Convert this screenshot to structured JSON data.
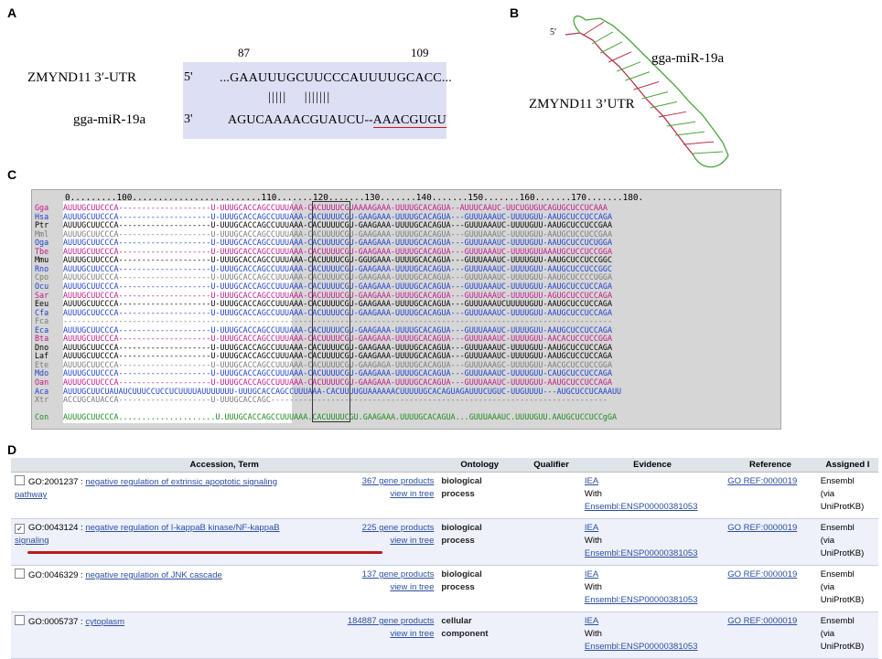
{
  "panels": {
    "a": "A",
    "b": "B",
    "c": "C",
    "d": "D"
  },
  "panelA": {
    "pos_start": "87",
    "pos_end": "109",
    "utr_label": "ZMYND11 3′-UTR",
    "mir_label": "gga-miR-19a",
    "utr_end": "5'",
    "mir_end": "3'",
    "utr_seq": "...GAAUUUGCUUCCCAUUUUGCACC...",
    "pairs": "|||||    |||||||",
    "mir_seq": "AGUCAAAACGUAUCU--",
    "mir_seed": "AAACGUGU"
  },
  "panelB": {
    "five_prime": "5′",
    "mir_label": "gga-miR-19a",
    "utr_label": "ZMYND11 3’UTR",
    "colors": {
      "mirna": "#4aa63c",
      "utr": "#b5334a"
    }
  },
  "panelC": {
    "ruler": "0.........100.........................110.......120.......130.......140.......150.......160.......170.......180.",
    "rows": [
      {
        "sp": "Gga",
        "color": "#c0188a",
        "seq": "AUUUGCUUCCCA--------------------U-UUUGCACCAGCCUUUAAA-CACUUUUCGUAAAAGAAA-UUUUGCACAGUA--AUUUCAAUC-UUCUGUGUCAGUGCUCCUCAAA"
      },
      {
        "sp": "Hsa",
        "color": "#1e3fd0",
        "seq": "AUUUGCUUCCCA--------------------U-UUUGCACCAGCCUUUAAA-CACUUUUCGU-GAAGAAA-UUUUGCACAGUA---GUUUAAAUC-UUUUGUU-AAUGCUCCUCCAGA"
      },
      {
        "sp": "Ptr",
        "color": "#000000",
        "seq": "AUUUGCUUCCCA--------------------U-UUUGCACCAGCCUUUAAA-CACUUUUCGU-GAAGAAA-UUUUGCACAGUA---GUUUAAAUC-UUUUGUU-AAUGCUCCUCCGAA"
      },
      {
        "sp": "Mml",
        "color": "#7a7a7a",
        "seq": "AUUUGCUUCCCA--------------------U-UUUGCACCAGCCUUUAAA-CACUUUUCGU-GAAGAAA-UUUUGCACAGUA---GUUUAAAUC-UUUUGUU-AAUGCUCCUCCGAA"
      },
      {
        "sp": "Oga",
        "color": "#1e3fd0",
        "seq": "AUUUGCUUCCCA--------------------U-UUUGCACCAGCCUUUAAA-CACUUUUCGU-GAAGAAA-UUUUGCACAGUA---GUUUAAAUC-UUUUGUU-AAUGCUCCUCUGGA"
      },
      {
        "sp": "Tbe",
        "color": "#c0188a",
        "seq": "AUUUGCUUCCCA--------------------U-UUUGCACCAGCCUUUAAA-CACUUUUCGU-GAAGAAA-UUUUGCACAGUA---GUUUAAAUC-UUUUGUUAAAUGCUCCUCCGGA"
      },
      {
        "sp": "Mmu",
        "color": "#000000",
        "seq": "AUUUGCUUCCCA--------------------U-UUUGCACCAGCCUUUAAA-CACUUUUCGU-GGUGAAA-UUUUGCACAGUA---GUUUAAAUC-UUUUGUU-AAUGCUCCUCCGGC"
      },
      {
        "sp": "Rno",
        "color": "#1e3fd0",
        "seq": "AUUUGCUUCCCA--------------------U-UUUGCACCAGCCUUUAAA-CACUUUUCGU-GAAGAAA-UUUUGCACAGUA---GUUUAAAUC-UUUUGUU-AAUGCUCCUCCGGC"
      },
      {
        "sp": "Cpo",
        "color": "#7a7a7a",
        "seq": "AUUUGCUUCCCA--------------------U-UUUGCACCAGCCUUUAAA-CACUUUUCGU-GAAGAAA-UUUUGCACAGUA---GUUUAAAUC-UUUUGUU-AAUGCUCCCCUGGA"
      },
      {
        "sp": "Ocu",
        "color": "#1e3fd0",
        "seq": "AUUUGCUUCCCA--------------------U-UUUGCACCAGCCUUUAAA-CACUUUUCGU-GAAGAAA-UUUUGCACAGUA---GUUUAAAUC-UUUUGUU-AAUGCUCCUCCAGA"
      },
      {
        "sp": "Sar",
        "color": "#c0188a",
        "seq": "AUUUGCUUCCCA--------------------U-UUUGCACCAGCCUUUAAA-CACUUUUCGU-GAAGAAA-UUUUGCACAGUA---GUUUAAAUC-UUUUGUU-AGUGCUCCUCCAGA"
      },
      {
        "sp": "Eeu",
        "color": "#000000",
        "seq": "AUUUGCUUCCCA--------------------U-UUUGCACCAGCCUUUAAA-CACUUUUCGU-GAAGAAA-UUUUGCACAGUA---GUUUAAAUCUUUUUGUU-AAUGCUCCUCCAGA"
      },
      {
        "sp": "Cfa",
        "color": "#1e3fd0",
        "seq": "AUUUGCUUCCCA--------------------U-UUUGCACCAGCCUUUAAA-CACUUUUCGU-GAAGAAA-UUUUGCACAGUA---GUUUAAAUC-UUUUGUU-AAUGCUCCUCCAGA"
      },
      {
        "sp": "Fca",
        "color": "#7a7a7a",
        "seq": "-----------------------------------------------------------------------------------------------------------------------"
      },
      {
        "sp": "Eca",
        "color": "#1e3fd0",
        "seq": "AUUUGCUUCCCA--------------------U-UUUGCACCAGCCUUUAAA-CACUUUUCGU-GAAGAAA-UUUUGCACAGUA---GUUUAAAUC-UUUUGUU-AAUGCUCCUCCAGA"
      },
      {
        "sp": "Bta",
        "color": "#c0188a",
        "seq": "AUUUGCUUCCCA--------------------U-UUUGCACCAGCCUUUAAA-CACUUUUCGU-GAAGAAA-UUUUGCACAGUA---GUUUAAAUC-UUUUGUU-AACACUCCUCCGGA"
      },
      {
        "sp": "Dno",
        "color": "#000000",
        "seq": "AUUUGCUUCCCA--------------------U-UUUGCACCAGCCUUUAAA-CACUUUUCGU-GAAGAAA-UUUUGCACAGUA---GUUUAAAUC-UUUUGUU-AAUGCUCCUCCAGA"
      },
      {
        "sp": "Laf",
        "color": "#000000",
        "seq": "AUUUGCUUCCCA--------------------U-UUUGCACCAGCCUUUAAA-CACUUUUCGU-GAAGAAA-UUUUGCACAGUA---GUUUAAAUC-UUUUGUU-AAUGCUCCUCCAGA"
      },
      {
        "sp": "Ete",
        "color": "#7a7a7a",
        "seq": "AUUUGCUUCCCA--------------------U-UUUGCACCAGCCUUUAAA-CACUUUUCGU-GAAGAGA-UUUUGCACAGUA---GUUUAAAGC-UUUUGUU-AACGCUCCUCCGGA"
      },
      {
        "sp": "Mdo",
        "color": "#1e3fd0",
        "seq": "AUUUGCUUCCCA--------------------U-UUUGCACCAGCCUUUAAA-CACUUUUCGU-GAAGAAA-UUUUGCACAGUA---GUUUAAAUC-UUUUGUU-CAUGCUCCUCCAGA"
      },
      {
        "sp": "Oan",
        "color": "#c0188a",
        "seq": "AUUUGCUUCCCA--------------------U-UUUGCACCAGCCUUUAAA-CACUUUUCGU-GAAGAAA-UUUUGCACAGUA---GUUUAAAUC-UUUUGUU-AAUGCUCCUCCAGA"
      },
      {
        "sp": "Aca",
        "color": "#1e3fd0",
        "seq": "AUUUGCUUCUAUAUCUUUCCUCCUCUUUUAUUUUUUU-UUUGCACCAGCCUUUAAA-CACUUUUGUAAAAAACUUUUUGCACAGUAGAUUUCUGUC-UUGUUUU---AUGCUCCUCAAAUU"
      },
      {
        "sp": "Xtr",
        "color": "#7a7a7a",
        "seq": "ACCUGCAUACCA--------------------U-UUUGCACCAGC-------------------------------------------------------------------------"
      },
      {
        "sp": "Con",
        "color": "#1f8a1f",
        "seq": "AUUUGCUUCCCA.....................U.UUUGCACCAGCCUUUAAA.CACUUUUCGU.GAAGAAA.UUUUGCACAGUA...GUUUAAAUC.UUUUGUU.AAUGCUCCUCCgGA"
      }
    ]
  },
  "panelD": {
    "headers": [
      "Accession, Term",
      "Ontology",
      "Qualifier",
      "Evidence",
      "Reference",
      "Assigned I"
    ],
    "rows": [
      {
        "checked": false,
        "id": "GO:2001237",
        "term": "negative regulation of extrinsic apoptotic signaling pathway",
        "term_line1": "negative regulation of extrinsic apoptotic signaling",
        "term_line2": "pathway",
        "gene_products": "367 gene products",
        "view": "view in tree",
        "ontology1": "biological",
        "ontology2": "process",
        "qualifier": "",
        "evidence": "IEA",
        "with": "With",
        "ensembl": "Ensembl:ENSP00000381053",
        "reference": "GO REF:0000019",
        "assigned1": "Ensembl",
        "assigned2": "(via",
        "assigned3": "UniProtKB)"
      },
      {
        "checked": true,
        "id": "GO:0043124",
        "term": "negative regulation of I-kappaB kinase/NF-kappaB signaling",
        "term_line1": "negative regulation of I-kappaB kinase/NF-kappaB",
        "term_line2": "signaling",
        "gene_products": "225 gene products",
        "view": "view in tree",
        "ontology1": "biological",
        "ontology2": "process",
        "qualifier": "",
        "evidence": "IEA",
        "with": "With",
        "ensembl": "Ensembl:ENSP00000381053",
        "reference": "GO REF:0000019",
        "assigned1": "Ensembl",
        "assigned2": "(via",
        "assigned3": "UniProtKB)"
      },
      {
        "checked": false,
        "id": "GO:0046329",
        "term": "negative regulation of JNK cascade",
        "term_line1": "negative regulation of JNK cascade",
        "term_line2": "",
        "gene_products": "137 gene products",
        "view": "view in tree",
        "ontology1": "biological",
        "ontology2": "process",
        "qualifier": "",
        "evidence": "IEA",
        "with": "With",
        "ensembl": "Ensembl:ENSP00000381053",
        "reference": "GO REF:0000019",
        "assigned1": "Ensembl",
        "assigned2": "(via",
        "assigned3": "UniProtKB)"
      },
      {
        "checked": false,
        "id": "GO:0005737",
        "term": "cytoplasm",
        "term_line1": "cytoplasm",
        "term_line2": "",
        "gene_products": "184887 gene products",
        "view": "view in tree",
        "ontology1": "cellular",
        "ontology2": "component",
        "qualifier": "",
        "evidence": "IEA",
        "with": "With",
        "ensembl": "Ensembl:ENSP00000381053",
        "reference": "GO REF:0000019",
        "assigned1": "Ensembl",
        "assigned2": "(via",
        "assigned3": "UniProtKB)"
      }
    ],
    "highlight_color": "#c0181a"
  }
}
